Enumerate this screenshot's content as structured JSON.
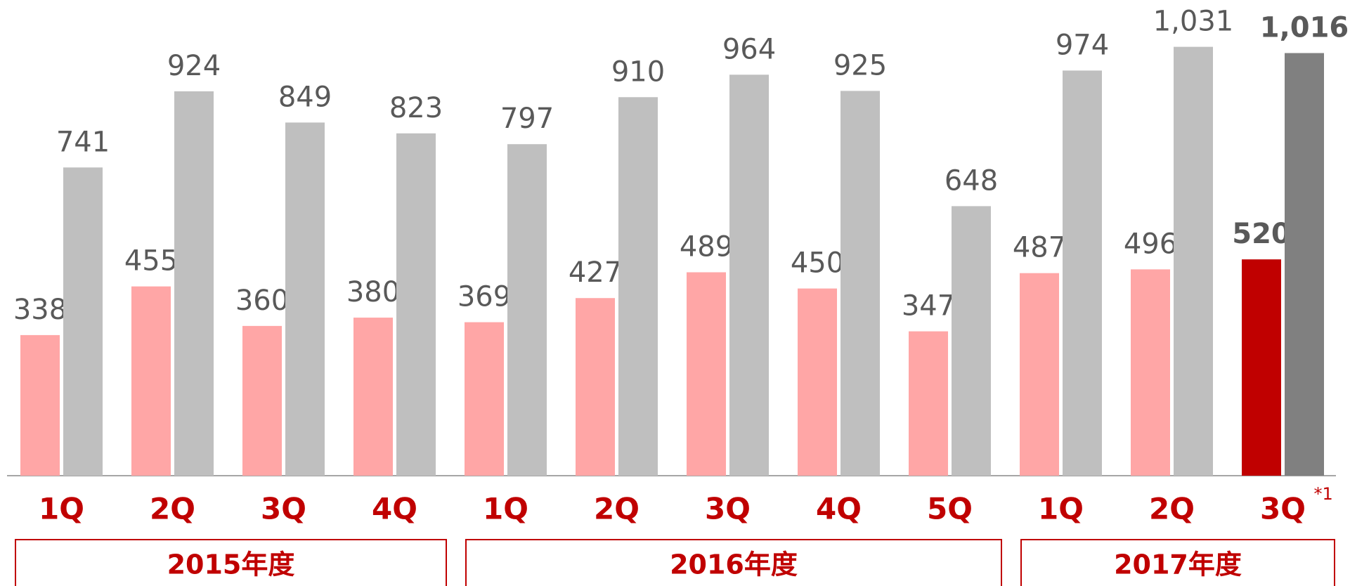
{
  "chart_data": {
    "type": "bar",
    "categories": [
      "1Q",
      "2Q",
      "3Q",
      "4Q",
      "1Q",
      "2Q",
      "3Q",
      "4Q",
      "5Q",
      "1Q",
      "2Q",
      "3Q"
    ],
    "series": [
      {
        "color": "#ffa6a6",
        "highlight": {
          "index": 11,
          "color": "#c00000"
        },
        "values": [
          338,
          455,
          360,
          380,
          369,
          427,
          489,
          450,
          347,
          487,
          496,
          520
        ]
      },
      {
        "color": "#bfbfbf",
        "highlight": {
          "index": 11,
          "color": "#808080"
        },
        "values": [
          741,
          924,
          849,
          823,
          797,
          910,
          964,
          925,
          648,
          974,
          1031,
          1016
        ],
        "value_labels": [
          "741",
          "924",
          "849",
          "823",
          "797",
          "910",
          "964",
          "925",
          "648",
          "974",
          "1,031",
          "1,016"
        ]
      }
    ],
    "groups": [
      {
        "label": "2015年度",
        "span": 4
      },
      {
        "label": "2016年度",
        "span": 5
      },
      {
        "label": "2017年度",
        "span": 3
      }
    ],
    "footnote": {
      "index": 11,
      "text": "*1"
    }
  }
}
